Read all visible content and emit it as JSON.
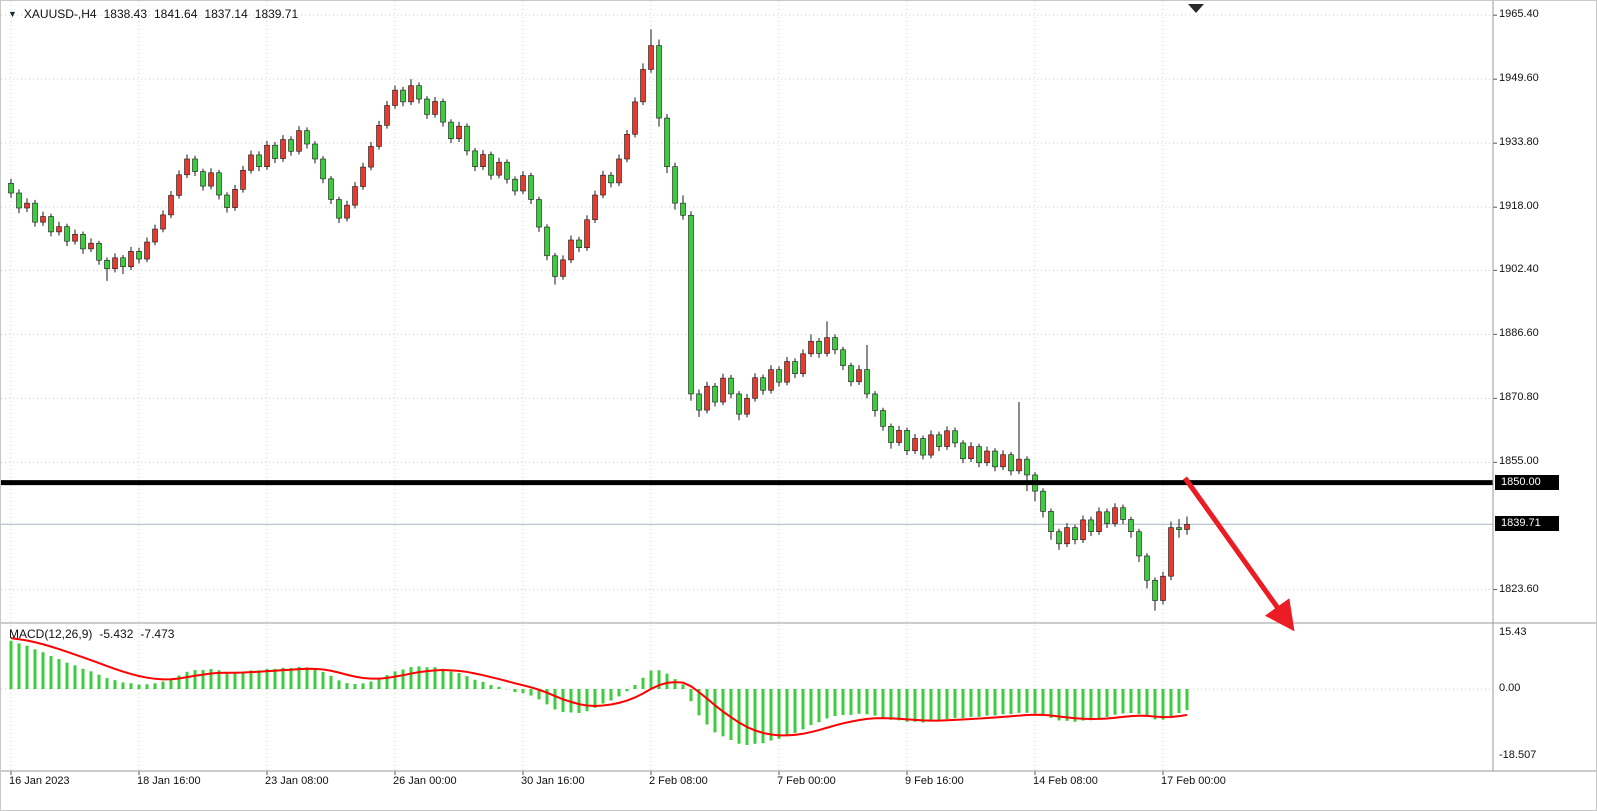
{
  "header": {
    "symbol": "XAUUSD-,H4",
    "open": "1838.43",
    "high": "1841.64",
    "low": "1837.14",
    "close": "1839.71"
  },
  "icons": {
    "dropdown_marker": "▼"
  },
  "price_axis": {
    "labels": [
      "1965.40",
      "1949.60",
      "1933.80",
      "1918.00",
      "1902.40",
      "1886.60",
      "1870.80",
      "1855.00",
      "1823.60"
    ],
    "hline_badge": "1850.00",
    "bid_badge": "1839.71"
  },
  "time_axis": {
    "labels": [
      "16 Jan 2023",
      "18 Jan 16:00",
      "23 Jan 08:00",
      "26 Jan 00:00",
      "30 Jan 16:00",
      "2 Feb 08:00",
      "7 Feb 00:00",
      "9 Feb 16:00",
      "14 Feb 08:00",
      "17 Feb 00:00"
    ]
  },
  "macd_panel": {
    "name": "MACD(12,26,9)",
    "value": "-5.432",
    "signal": "-7.473",
    "axis_labels": [
      "15.43",
      "0.00",
      "-18.507"
    ]
  },
  "colors": {
    "background": "#ffffff",
    "bull_candle": "#e23b30",
    "bear_candle": "#3ecb3e",
    "candle_outline": "#1a1a1a",
    "macd_histogram": "#3ecb3e",
    "macd_signal_line": "#ff0000",
    "grid": "#c9ccd4",
    "horizontal_line_1850": "#000000",
    "price_badge_bg": "#000000",
    "price_badge_text": "#ffffff",
    "annotation_arrow": "#ec1c24",
    "axis_text": "#1a1a1a"
  },
  "chart_data": {
    "type": "candlestick",
    "symbol": "XAUUSD-",
    "timeframe": "H4",
    "last_bar": {
      "open": 1838.43,
      "high": 1841.64,
      "low": 1837.14,
      "close": 1839.71
    },
    "y_axis_ticks": [
      1965.4,
      1949.6,
      1933.8,
      1918.0,
      1902.4,
      1886.6,
      1870.8,
      1855.0,
      1823.6
    ],
    "x_tick_labels": [
      "16 Jan 2023",
      "18 Jan 16:00",
      "23 Jan 08:00",
      "26 Jan 00:00",
      "30 Jan 16:00",
      "2 Feb 08:00",
      "7 Feb 00:00",
      "9 Feb 16:00",
      "14 Feb 08:00",
      "17 Feb 00:00"
    ],
    "bars_per_x_tick": 16,
    "horizontal_line": 1850.0,
    "current_bid": 1839.71,
    "candles_ohlc": [
      [
        1923.9,
        1925.0,
        1920.3,
        1921.5
      ],
      [
        1921.5,
        1922.4,
        1916.5,
        1917.8
      ],
      [
        1917.8,
        1920.2,
        1916.8,
        1919.0
      ],
      [
        1919.0,
        1919.8,
        1913.2,
        1914.3
      ],
      [
        1914.3,
        1916.9,
        1913.4,
        1915.7
      ],
      [
        1915.7,
        1916.4,
        1910.8,
        1911.9
      ],
      [
        1911.9,
        1914.4,
        1911.0,
        1913.2
      ],
      [
        1913.2,
        1913.9,
        1908.4,
        1909.6
      ],
      [
        1909.6,
        1912.5,
        1908.8,
        1911.3
      ],
      [
        1911.3,
        1912.0,
        1906.5,
        1907.7
      ],
      [
        1907.7,
        1910.3,
        1906.9,
        1909.1
      ],
      [
        1909.1,
        1909.7,
        1903.8,
        1904.9
      ],
      [
        1904.9,
        1905.6,
        1899.8,
        1902.8
      ],
      [
        1902.8,
        1906.6,
        1901.9,
        1905.5
      ],
      [
        1905.5,
        1906.2,
        1901.5,
        1903.3
      ],
      [
        1903.3,
        1908.2,
        1902.5,
        1907.1
      ],
      [
        1907.1,
        1908.0,
        1904.1,
        1905.2
      ],
      [
        1905.2,
        1910.5,
        1904.4,
        1909.4
      ],
      [
        1909.4,
        1913.7,
        1908.6,
        1912.6
      ],
      [
        1912.6,
        1917.2,
        1911.8,
        1916.1
      ],
      [
        1916.1,
        1922.0,
        1915.3,
        1920.9
      ],
      [
        1920.9,
        1927.1,
        1920.1,
        1926.0
      ],
      [
        1926.0,
        1931.0,
        1925.2,
        1929.9
      ],
      [
        1929.9,
        1930.7,
        1925.7,
        1926.8
      ],
      [
        1926.8,
        1927.5,
        1922.1,
        1923.2
      ],
      [
        1923.2,
        1927.6,
        1922.4,
        1926.5
      ],
      [
        1926.5,
        1927.2,
        1919.9,
        1921.0
      ],
      [
        1921.0,
        1921.7,
        1916.7,
        1917.9
      ],
      [
        1917.9,
        1923.5,
        1917.1,
        1922.4
      ],
      [
        1922.4,
        1928.2,
        1921.6,
        1927.1
      ],
      [
        1927.1,
        1932.0,
        1926.3,
        1930.9
      ],
      [
        1930.9,
        1931.8,
        1926.9,
        1928.0
      ],
      [
        1928.0,
        1934.4,
        1927.2,
        1933.3
      ],
      [
        1933.3,
        1934.1,
        1928.9,
        1930.0
      ],
      [
        1930.0,
        1935.8,
        1929.2,
        1934.7
      ],
      [
        1934.7,
        1935.5,
        1930.7,
        1931.8
      ],
      [
        1931.8,
        1938.0,
        1931.0,
        1936.9
      ],
      [
        1936.9,
        1937.7,
        1932.5,
        1933.6
      ],
      [
        1933.6,
        1934.3,
        1928.8,
        1929.9
      ],
      [
        1929.9,
        1930.6,
        1923.9,
        1925.0
      ],
      [
        1925.0,
        1925.7,
        1918.8,
        1919.9
      ],
      [
        1919.9,
        1920.6,
        1914.1,
        1915.3
      ],
      [
        1915.3,
        1919.6,
        1914.5,
        1918.5
      ],
      [
        1918.5,
        1924.2,
        1917.7,
        1923.1
      ],
      [
        1923.1,
        1929.0,
        1922.3,
        1927.9
      ],
      [
        1927.9,
        1934.1,
        1927.1,
        1933.0
      ],
      [
        1933.0,
        1939.3,
        1932.2,
        1938.2
      ],
      [
        1938.2,
        1944.2,
        1937.4,
        1943.1
      ],
      [
        1943.1,
        1948.0,
        1942.3,
        1946.9
      ],
      [
        1946.9,
        1947.7,
        1942.9,
        1944.0
      ],
      [
        1944.0,
        1949.6,
        1943.2,
        1948.0
      ],
      [
        1948.0,
        1948.8,
        1943.6,
        1944.7
      ],
      [
        1944.7,
        1945.4,
        1939.8,
        1940.9
      ],
      [
        1940.9,
        1945.2,
        1940.1,
        1944.1
      ],
      [
        1944.1,
        1944.8,
        1937.9,
        1939.0
      ],
      [
        1939.0,
        1939.7,
        1933.8,
        1934.9
      ],
      [
        1934.9,
        1939.1,
        1934.1,
        1938.0
      ],
      [
        1938.0,
        1938.7,
        1930.8,
        1931.9
      ],
      [
        1931.9,
        1932.6,
        1926.9,
        1928.0
      ],
      [
        1928.0,
        1932.1,
        1927.2,
        1931.0
      ],
      [
        1931.0,
        1931.7,
        1924.8,
        1925.9
      ],
      [
        1925.9,
        1930.2,
        1925.1,
        1929.1
      ],
      [
        1929.1,
        1929.8,
        1923.8,
        1924.9
      ],
      [
        1924.9,
        1925.6,
        1920.9,
        1922.0
      ],
      [
        1922.0,
        1926.9,
        1921.2,
        1925.8
      ],
      [
        1925.8,
        1926.5,
        1918.8,
        1919.9
      ],
      [
        1919.9,
        1920.6,
        1911.9,
        1913.1
      ],
      [
        1913.1,
        1913.8,
        1904.9,
        1906.0
      ],
      [
        1906.0,
        1906.7,
        1898.9,
        1900.9
      ],
      [
        1900.9,
        1906.1,
        1900.1,
        1905.0
      ],
      [
        1905.0,
        1911.0,
        1904.2,
        1909.9
      ],
      [
        1909.9,
        1910.7,
        1906.9,
        1908.0
      ],
      [
        1908.0,
        1916.0,
        1907.2,
        1914.9
      ],
      [
        1914.9,
        1922.1,
        1914.1,
        1921.0
      ],
      [
        1921.0,
        1927.0,
        1920.2,
        1925.9
      ],
      [
        1925.9,
        1926.7,
        1922.9,
        1924.0
      ],
      [
        1924.0,
        1931.0,
        1923.2,
        1929.9
      ],
      [
        1929.9,
        1937.1,
        1929.1,
        1936.0
      ],
      [
        1936.0,
        1945.1,
        1935.2,
        1944.0
      ],
      [
        1944.0,
        1953.5,
        1943.2,
        1952.0
      ],
      [
        1952.0,
        1961.9,
        1951.2,
        1957.9
      ],
      [
        1957.9,
        1959.4,
        1937.9,
        1940.0
      ],
      [
        1940.0,
        1941.0,
        1926.4,
        1928.0
      ],
      [
        1928.0,
        1929.0,
        1917.4,
        1919.0
      ],
      [
        1919.0,
        1920.9,
        1914.9,
        1916.0
      ],
      [
        1916.0,
        1917.0,
        1870.2,
        1871.9
      ],
      [
        1871.9,
        1873.0,
        1866.2,
        1867.9
      ],
      [
        1867.9,
        1874.9,
        1867.1,
        1873.8
      ],
      [
        1873.8,
        1874.6,
        1868.8,
        1869.9
      ],
      [
        1869.9,
        1876.9,
        1869.1,
        1875.8
      ],
      [
        1875.8,
        1876.6,
        1870.8,
        1871.9
      ],
      [
        1871.9,
        1872.6,
        1865.4,
        1866.9
      ],
      [
        1866.9,
        1871.9,
        1866.1,
        1870.8
      ],
      [
        1870.8,
        1877.0,
        1870.0,
        1875.9
      ],
      [
        1875.9,
        1876.7,
        1871.7,
        1872.8
      ],
      [
        1872.8,
        1879.0,
        1872.0,
        1877.9
      ],
      [
        1877.9,
        1878.7,
        1873.7,
        1874.8
      ],
      [
        1874.8,
        1881.0,
        1874.0,
        1879.9
      ],
      [
        1879.9,
        1880.7,
        1875.8,
        1876.9
      ],
      [
        1876.9,
        1882.9,
        1876.1,
        1881.8
      ],
      [
        1881.8,
        1886.6,
        1881.0,
        1884.9
      ],
      [
        1884.9,
        1885.7,
        1880.8,
        1881.9
      ],
      [
        1881.9,
        1889.8,
        1881.1,
        1885.8
      ],
      [
        1885.8,
        1886.6,
        1881.7,
        1882.8
      ],
      [
        1882.8,
        1883.5,
        1877.8,
        1878.9
      ],
      [
        1878.9,
        1879.6,
        1873.8,
        1874.9
      ],
      [
        1874.9,
        1879.0,
        1874.1,
        1877.9
      ],
      [
        1877.9,
        1884.0,
        1870.8,
        1871.9
      ],
      [
        1871.9,
        1872.6,
        1866.3,
        1867.8
      ],
      [
        1867.8,
        1868.5,
        1862.8,
        1863.9
      ],
      [
        1863.9,
        1864.6,
        1858.4,
        1859.9
      ],
      [
        1859.9,
        1864.0,
        1859.1,
        1862.9
      ],
      [
        1862.9,
        1863.6,
        1856.8,
        1857.9
      ],
      [
        1857.9,
        1862.0,
        1857.1,
        1860.9
      ],
      [
        1860.9,
        1861.6,
        1855.7,
        1856.8
      ],
      [
        1856.8,
        1862.9,
        1856.0,
        1861.8
      ],
      [
        1861.8,
        1862.6,
        1857.8,
        1858.9
      ],
      [
        1858.9,
        1863.9,
        1858.1,
        1862.8
      ],
      [
        1862.8,
        1863.6,
        1858.7,
        1859.8
      ],
      [
        1859.8,
        1860.5,
        1854.8,
        1855.9
      ],
      [
        1855.9,
        1860.0,
        1855.1,
        1858.9
      ],
      [
        1858.9,
        1859.6,
        1853.8,
        1854.9
      ],
      [
        1854.9,
        1858.9,
        1854.1,
        1857.8
      ],
      [
        1857.8,
        1858.5,
        1852.8,
        1853.9
      ],
      [
        1853.9,
        1858.0,
        1853.1,
        1856.9
      ],
      [
        1856.9,
        1857.6,
        1851.8,
        1852.9
      ],
      [
        1852.9,
        1869.9,
        1852.1,
        1855.8
      ],
      [
        1855.8,
        1856.5,
        1847.9,
        1851.9
      ],
      [
        1851.9,
        1852.6,
        1845.4,
        1847.9
      ],
      [
        1847.9,
        1848.6,
        1841.4,
        1842.9
      ],
      [
        1842.9,
        1843.6,
        1835.9,
        1837.9
      ],
      [
        1837.9,
        1838.6,
        1833.4,
        1834.9
      ],
      [
        1834.9,
        1840.0,
        1834.1,
        1838.9
      ],
      [
        1838.9,
        1839.6,
        1834.8,
        1835.9
      ],
      [
        1835.9,
        1841.9,
        1835.1,
        1840.8
      ],
      [
        1840.8,
        1841.6,
        1836.8,
        1837.9
      ],
      [
        1837.9,
        1843.9,
        1837.1,
        1842.8
      ],
      [
        1842.8,
        1843.6,
        1838.8,
        1839.9
      ],
      [
        1839.9,
        1844.9,
        1839.1,
        1843.8
      ],
      [
        1843.8,
        1844.6,
        1839.8,
        1840.9
      ],
      [
        1840.9,
        1841.6,
        1836.4,
        1837.9
      ],
      [
        1837.9,
        1838.6,
        1830.4,
        1831.9
      ],
      [
        1831.9,
        1832.6,
        1823.9,
        1825.9
      ],
      [
        1825.9,
        1826.6,
        1818.4,
        1820.9
      ],
      [
        1820.9,
        1828.0,
        1819.9,
        1826.9
      ],
      [
        1826.9,
        1840.4,
        1825.9,
        1838.9
      ],
      [
        1838.9,
        1841.0,
        1836.4,
        1838.4
      ],
      [
        1838.43,
        1841.64,
        1837.14,
        1839.71
      ]
    ],
    "indicator": {
      "name": "MACD",
      "fast": 12,
      "slow": 26,
      "signal_period": 9,
      "current_value": -5.432,
      "current_signal": -7.473,
      "axis_ticks": [
        15.43,
        0.0,
        -18.507
      ],
      "left_edge_value": 13.8,
      "left_edge_signal": 14.3
    },
    "annotation": {
      "type": "arrow",
      "color": "#ec1c24",
      "direction": "down-right"
    }
  }
}
